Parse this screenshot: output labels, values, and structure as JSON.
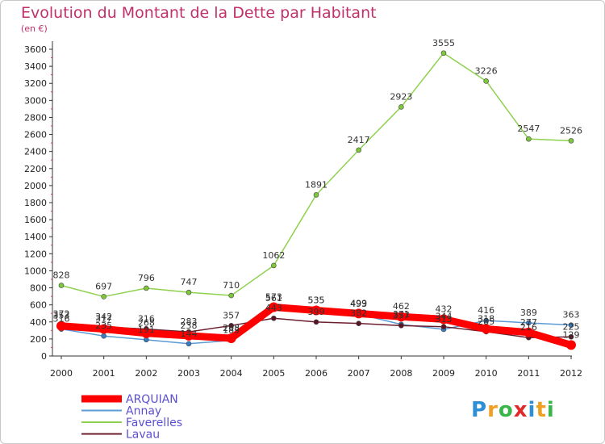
{
  "chart_data": {
    "type": "line",
    "title": "Evolution du Montant de la Dette par Habitant",
    "subtitle": "(en €)",
    "x": [
      "2000",
      "2001",
      "2002",
      "2003",
      "2004",
      "2005",
      "2006",
      "2007",
      "2008",
      "2009",
      "2010",
      "2011",
      "2012"
    ],
    "ylim": [
      0,
      3600
    ],
    "yticks": [
      0,
      200,
      400,
      600,
      800,
      1000,
      1200,
      1400,
      1600,
      1800,
      2000,
      2200,
      2400,
      2600,
      2800,
      3000,
      3200,
      3400,
      3600
    ],
    "grid": false,
    "legend": "bottom-left",
    "series": [
      {
        "name": "ARQUIAN",
        "color": "#ff0000",
        "values": [
          353,
          317,
          268,
          238,
          208,
          573,
          535,
          499,
          462,
          432,
          318,
          277,
          129
        ]
      },
      {
        "name": "Annay",
        "color": "#5b9bd5",
        "values": [
          316,
          235,
          191,
          144,
          183,
          561,
          535,
          493,
          371,
          313,
          416,
          389,
          363
        ]
      },
      {
        "name": "Faverelles",
        "color": "#8fd14f",
        "values": [
          828,
          697,
          796,
          747,
          710,
          1062,
          1891,
          2417,
          2923,
          3555,
          3226,
          2547,
          2526
        ]
      },
      {
        "name": "Lavau",
        "color": "#6b1e2e",
        "values": [
          372,
          342,
          316,
          283,
          357,
          443,
          399,
          382,
          357,
          344,
          285,
          216,
          225
        ]
      }
    ]
  },
  "logo": {
    "text": "Proxiti"
  }
}
